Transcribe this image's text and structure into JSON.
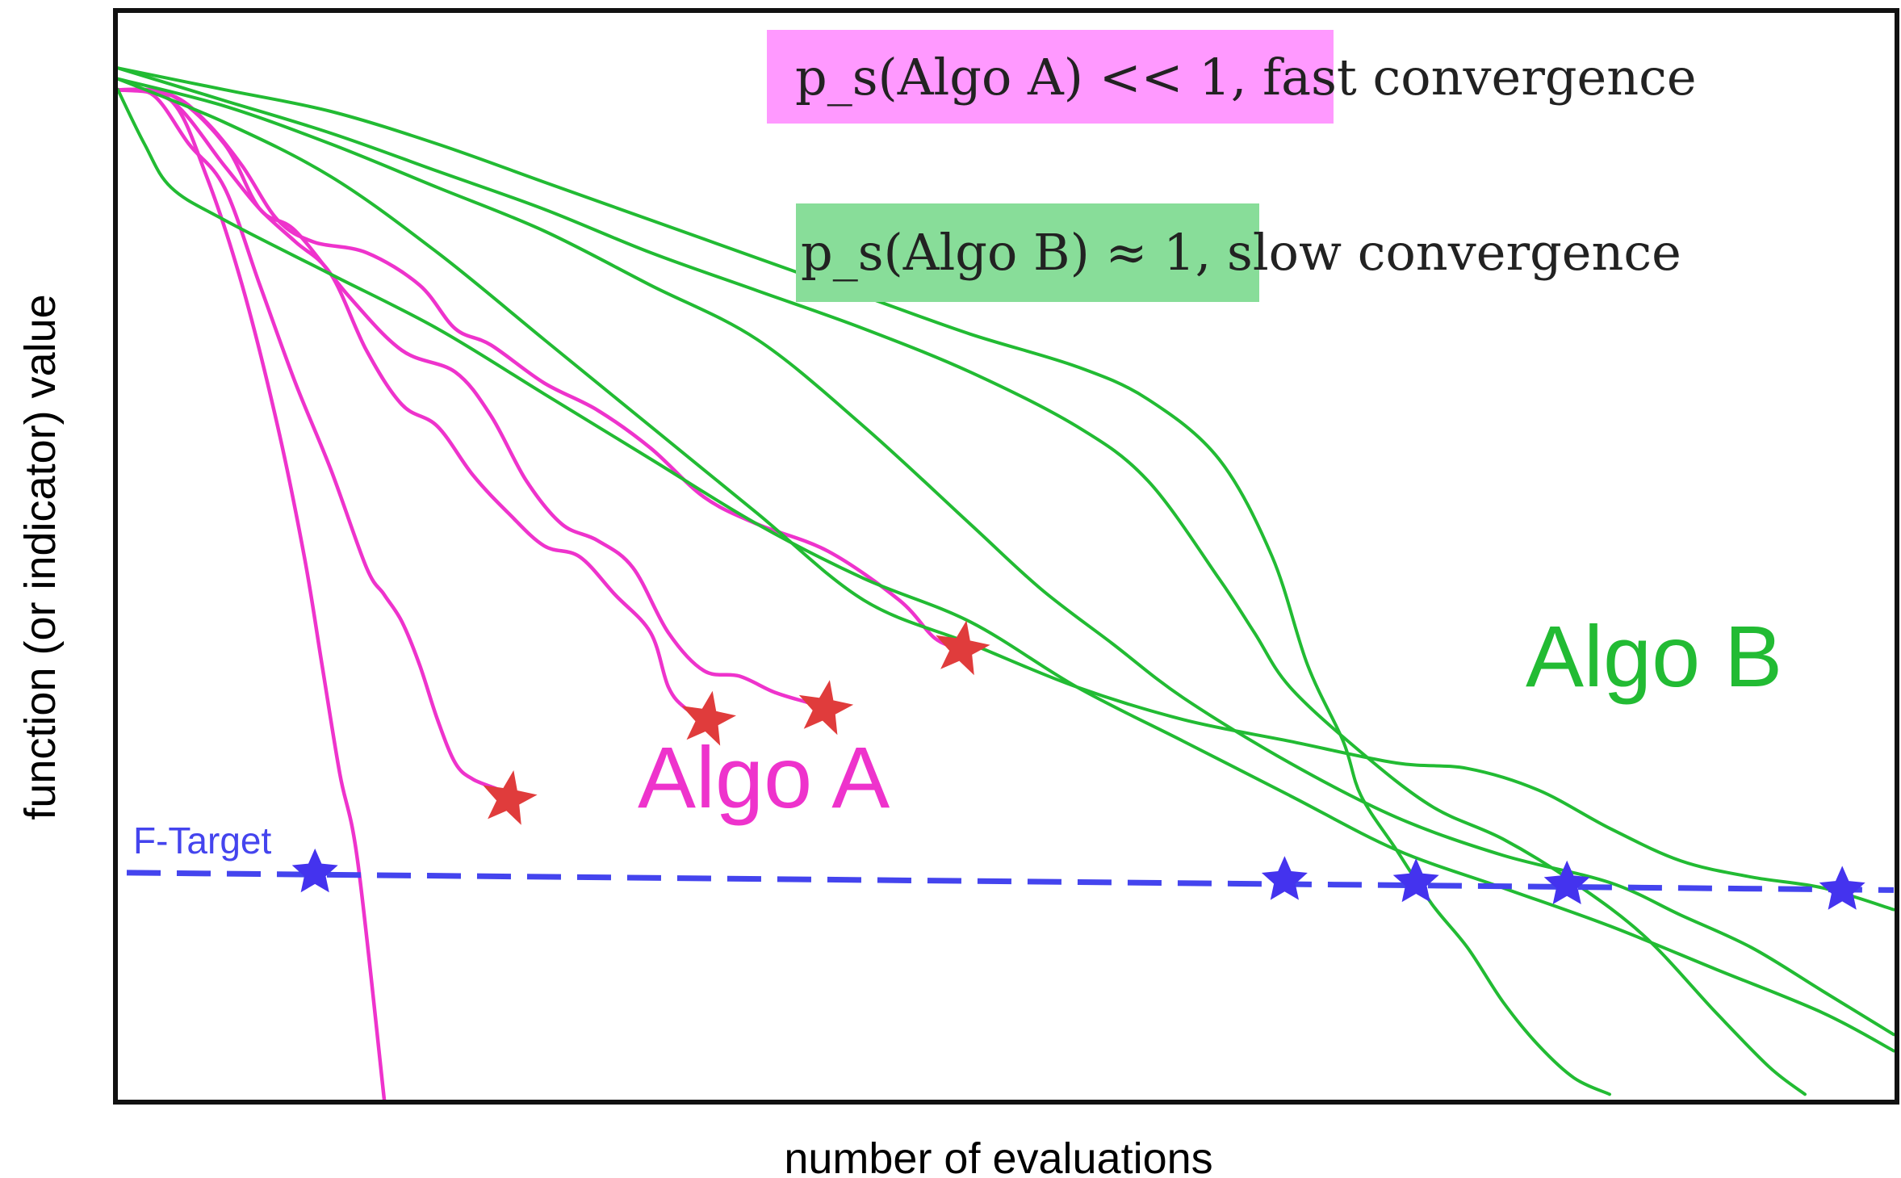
{
  "chart_data": {
    "type": "line",
    "title": "",
    "xlabel": "number of evaluations",
    "ylabel": "function (or indicator) value",
    "xlim": [
      0,
      100
    ],
    "ylim": [
      0,
      100
    ],
    "grid": false,
    "colors": {
      "algo_a": "#ee33cc",
      "algo_b": "#22bb33",
      "target": "#4444ee",
      "fail_star": "#e03c3c",
      "success_star": "#4433ee",
      "box_a": "#ff99ff",
      "box_b": "#88dd99"
    },
    "annotations": {
      "box_a_math": "p_s(Algo A) << 1,",
      "box_a_rest": " fast convergence",
      "box_b_math": "p_s(Algo B) ≈ 1,",
      "box_b_rest": " slow convergence",
      "algo_a_label": "Algo A",
      "algo_b_label": "Algo B",
      "target_label": "F-Target"
    },
    "target_value": 20.3,
    "series": [
      {
        "group": "Algo A",
        "end": "success",
        "points": [
          [
            0,
            93
          ],
          [
            3,
            92
          ],
          [
            5,
            85
          ],
          [
            7,
            75
          ],
          [
            9,
            62
          ],
          [
            10.5,
            50
          ],
          [
            11.5,
            40
          ],
          [
            12.5,
            30
          ],
          [
            13.5,
            22
          ],
          [
            15,
            0
          ]
        ]
      },
      {
        "group": "Algo A",
        "end": "fail",
        "points": [
          [
            0,
            93
          ],
          [
            2,
            92.5
          ],
          [
            4,
            88
          ],
          [
            6,
            84
          ],
          [
            8,
            75
          ],
          [
            10,
            66
          ],
          [
            12,
            58
          ],
          [
            14,
            49
          ],
          [
            15,
            46.5
          ],
          [
            16,
            44
          ],
          [
            17,
            40
          ],
          [
            18,
            35
          ],
          [
            19,
            31
          ],
          [
            20,
            29.5
          ],
          [
            21.5,
            28.5
          ],
          [
            22,
            27.7
          ]
        ]
      },
      {
        "group": "Algo A",
        "end": "fail",
        "points": [
          [
            0,
            93
          ],
          [
            3,
            92
          ],
          [
            6,
            86
          ],
          [
            8,
            82
          ],
          [
            10,
            79
          ],
          [
            12,
            76
          ],
          [
            14,
            69
          ],
          [
            16,
            64
          ],
          [
            18,
            62
          ],
          [
            20,
            57.5
          ],
          [
            22,
            54
          ],
          [
            24,
            51
          ],
          [
            26,
            50
          ],
          [
            28,
            46.5
          ],
          [
            30,
            43
          ],
          [
            31,
            38
          ],
          [
            32,
            36
          ],
          [
            33.2,
            35
          ]
        ]
      },
      {
        "group": "Algo A",
        "end": "fail",
        "points": [
          [
            0,
            93
          ],
          [
            3,
            92.5
          ],
          [
            6,
            88
          ],
          [
            8,
            82
          ],
          [
            10,
            80
          ],
          [
            13,
            74
          ],
          [
            16,
            69
          ],
          [
            19,
            67
          ],
          [
            21,
            63
          ],
          [
            23,
            57
          ],
          [
            25,
            53
          ],
          [
            27,
            51.5
          ],
          [
            29,
            49
          ],
          [
            31,
            43
          ],
          [
            33,
            39.5
          ],
          [
            35,
            39
          ],
          [
            37,
            37.5
          ],
          [
            39,
            36.5
          ],
          [
            39.8,
            36
          ]
        ]
      },
      {
        "group": "Algo A",
        "end": "fail",
        "points": [
          [
            0,
            93
          ],
          [
            3,
            92.5
          ],
          [
            5,
            90
          ],
          [
            7,
            86
          ],
          [
            9,
            81
          ],
          [
            11,
            79
          ],
          [
            14,
            78
          ],
          [
            17,
            75
          ],
          [
            19,
            71
          ],
          [
            21,
            69.5
          ],
          [
            24,
            66
          ],
          [
            27,
            63.5
          ],
          [
            30,
            60
          ],
          [
            33,
            55.5
          ],
          [
            36,
            53
          ],
          [
            40,
            50.5
          ],
          [
            44,
            46
          ],
          [
            46,
            42.5
          ],
          [
            47.5,
            41.5
          ]
        ]
      },
      {
        "group": "Algo B",
        "end": "success",
        "points": [
          [
            0,
            95
          ],
          [
            6,
            93
          ],
          [
            12,
            91
          ],
          [
            18,
            88
          ],
          [
            24,
            84.5
          ],
          [
            30,
            81
          ],
          [
            36,
            77.5
          ],
          [
            42,
            74
          ],
          [
            48,
            70.5
          ],
          [
            54,
            67.5
          ],
          [
            58,
            64.5
          ],
          [
            62,
            59
          ],
          [
            65,
            50
          ],
          [
            67,
            40
          ],
          [
            69,
            33
          ],
          [
            70,
            28
          ],
          [
            72,
            23
          ],
          [
            74,
            18
          ],
          [
            76,
            14
          ],
          [
            78,
            9
          ],
          [
            80,
            5
          ],
          [
            82,
            2
          ],
          [
            84,
            0.5
          ]
        ]
      },
      {
        "group": "Algo B",
        "end": "success",
        "points": [
          [
            0,
            95
          ],
          [
            6,
            92
          ],
          [
            12,
            89
          ],
          [
            18,
            85.5
          ],
          [
            24,
            82
          ],
          [
            30,
            78
          ],
          [
            36,
            74.5
          ],
          [
            42,
            71
          ],
          [
            48,
            67
          ],
          [
            54,
            62
          ],
          [
            58,
            57
          ],
          [
            62,
            48
          ],
          [
            64,
            43
          ],
          [
            66,
            38
          ],
          [
            70,
            32
          ],
          [
            74,
            27
          ],
          [
            78,
            24
          ],
          [
            82,
            20
          ],
          [
            86,
            15
          ],
          [
            90,
            8
          ],
          [
            93,
            3
          ],
          [
            95,
            0.5
          ]
        ]
      },
      {
        "group": "Algo B",
        "end": "success",
        "points": [
          [
            0,
            94
          ],
          [
            6,
            91.5
          ],
          [
            12,
            88
          ],
          [
            18,
            84
          ],
          [
            24,
            80
          ],
          [
            30,
            75
          ],
          [
            36,
            70
          ],
          [
            42,
            62
          ],
          [
            48,
            53
          ],
          [
            52,
            47
          ],
          [
            56,
            42
          ],
          [
            60,
            37
          ],
          [
            66,
            31
          ],
          [
            72,
            26
          ],
          [
            78,
            22.5
          ],
          [
            84,
            20
          ],
          [
            88,
            17
          ],
          [
            92,
            14
          ],
          [
            96,
            10
          ],
          [
            100,
            6
          ]
        ]
      },
      {
        "group": "Algo B",
        "end": "success",
        "points": [
          [
            0,
            93
          ],
          [
            1.5,
            88
          ],
          [
            3,
            84
          ],
          [
            6,
            81
          ],
          [
            12,
            76
          ],
          [
            18,
            71
          ],
          [
            24,
            65
          ],
          [
            30,
            59
          ],
          [
            36,
            53
          ],
          [
            42,
            48
          ],
          [
            48,
            44
          ],
          [
            54,
            38
          ],
          [
            60,
            33
          ],
          [
            66,
            28
          ],
          [
            72,
            23
          ],
          [
            78,
            19.5
          ],
          [
            84,
            16
          ],
          [
            90,
            12
          ],
          [
            96,
            8
          ],
          [
            100,
            4.5
          ]
        ]
      },
      {
        "group": "Algo B",
        "end": "success",
        "points": [
          [
            0,
            94
          ],
          [
            6,
            90
          ],
          [
            12,
            85
          ],
          [
            18,
            78
          ],
          [
            24,
            70
          ],
          [
            30,
            62
          ],
          [
            36,
            54
          ],
          [
            42,
            46
          ],
          [
            48,
            42
          ],
          [
            54,
            38
          ],
          [
            60,
            35
          ],
          [
            66,
            33
          ],
          [
            72,
            31
          ],
          [
            76,
            30.5
          ],
          [
            80,
            28.5
          ],
          [
            84,
            25
          ],
          [
            88,
            22
          ],
          [
            92,
            20.5
          ],
          [
            96,
            19.5
          ],
          [
            100,
            17.5
          ]
        ]
      }
    ],
    "fail_stars": [
      [
        22,
        27.7
      ],
      [
        33.2,
        35
      ],
      [
        39.8,
        36
      ],
      [
        47.5,
        41.5
      ]
    ],
    "success_stars": [
      [
        11.1,
        20.9
      ],
      [
        65.7,
        20.2
      ],
      [
        73.1,
        20
      ],
      [
        81.6,
        19.8
      ],
      [
        97.1,
        19.3
      ]
    ]
  }
}
